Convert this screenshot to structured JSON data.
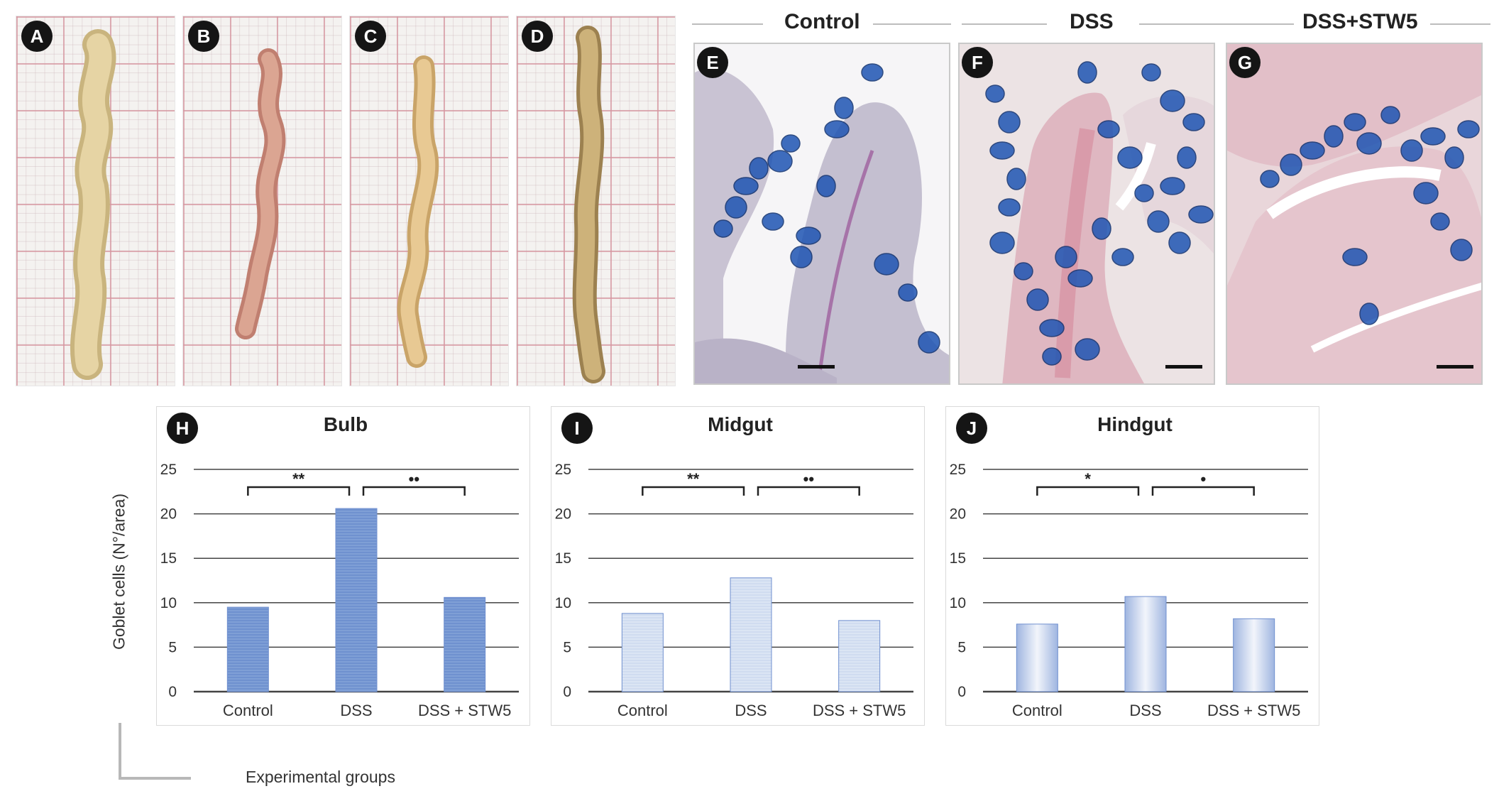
{
  "photos": [
    {
      "label": "A",
      "color": "#e6d4a4",
      "edge": "#c9b47e"
    },
    {
      "label": "B",
      "color": "#dba592",
      "edge": "#c07f70"
    },
    {
      "label": "C",
      "color": "#e8c993",
      "edge": "#c9a468"
    },
    {
      "label": "D",
      "color": "#cdb27a",
      "edge": "#9c8150"
    }
  ],
  "histology": [
    {
      "group": "Control",
      "label": "E"
    },
    {
      "group": "DSS",
      "label": "F"
    },
    {
      "group": "DSS+STW5",
      "label": "G"
    }
  ],
  "colors": {
    "bar_fill": "#7f9fd6",
    "bar_fill_light": "#dbe5f4",
    "bar_edge": "#6f8fcf",
    "grid": "#444444",
    "goblet": "#1f55b3",
    "stain_pink": "#d99aab"
  },
  "chart_data": [
    {
      "panel": "H",
      "type": "bar",
      "title": "Bulb",
      "categories": [
        "Control",
        "DSS",
        "DSS + STW5"
      ],
      "values": [
        9.5,
        20.6,
        10.6
      ],
      "ylim": [
        0,
        25
      ],
      "yticks": [
        0,
        5,
        10,
        15,
        20,
        25
      ],
      "significance": [
        {
          "from": 0,
          "to": 1,
          "label": "**"
        },
        {
          "from": 1,
          "to": 2,
          "label": "••"
        }
      ]
    },
    {
      "panel": "I",
      "type": "bar",
      "title": "Midgut",
      "categories": [
        "Control",
        "DSS",
        "DSS + STW5"
      ],
      "values": [
        8.8,
        12.8,
        8.0
      ],
      "ylim": [
        0,
        25
      ],
      "yticks": [
        0,
        5,
        10,
        15,
        20,
        25
      ],
      "significance": [
        {
          "from": 0,
          "to": 1,
          "label": "**"
        },
        {
          "from": 1,
          "to": 2,
          "label": "••"
        }
      ]
    },
    {
      "panel": "J",
      "type": "bar",
      "title": "Hindgut",
      "categories": [
        "Control",
        "DSS",
        "DSS + STW5"
      ],
      "values": [
        7.6,
        10.7,
        8.2
      ],
      "ylim": [
        0,
        25
      ],
      "yticks": [
        0,
        5,
        10,
        15,
        20,
        25
      ],
      "significance": [
        {
          "from": 0,
          "to": 1,
          "label": "*"
        },
        {
          "from": 1,
          "to": 2,
          "label": "•"
        }
      ]
    }
  ],
  "axes": {
    "ylabel": "Goblet cells (N°/area)",
    "xlabel": "Experimental groups"
  }
}
